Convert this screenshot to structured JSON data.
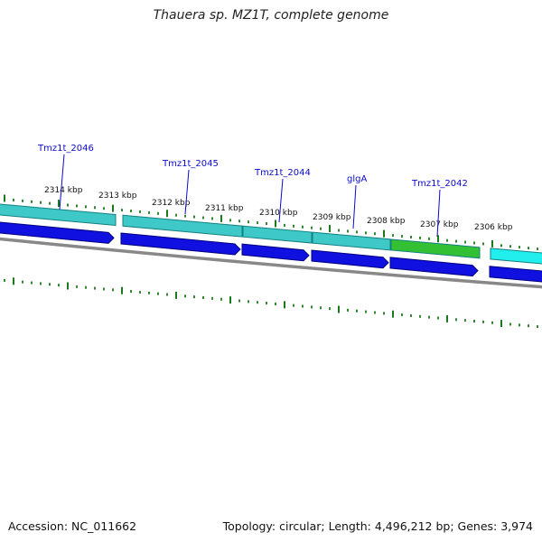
{
  "title": "Thauera sp. MZ1T, complete genome",
  "footer": {
    "accession": "Accession: NC_011662",
    "topology": "Topology: circular; Length: 4,496,212 bp; Genes: 3,974"
  },
  "colors": {
    "cds_arrow": "#1010e0",
    "gene_teal": "#3ec8c8",
    "gene_green": "#33c033",
    "gene_cyan": "#22eeee",
    "tick": "#1a7a1a",
    "backbone": "#888888",
    "label": "#0a0acc"
  },
  "kbp_labels": [
    "2314 kbp",
    "2313 kbp",
    "2312 kbp",
    "2311 kbp",
    "2310 kbp",
    "2309 kbp",
    "2308 kbp",
    "2307 kbp",
    "2306 kbp"
  ],
  "genes": [
    "Tmz1t_2046",
    "Tmz1t_2045",
    "Tmz1t_2044",
    "glgA",
    "Tmz1t_2042"
  ]
}
